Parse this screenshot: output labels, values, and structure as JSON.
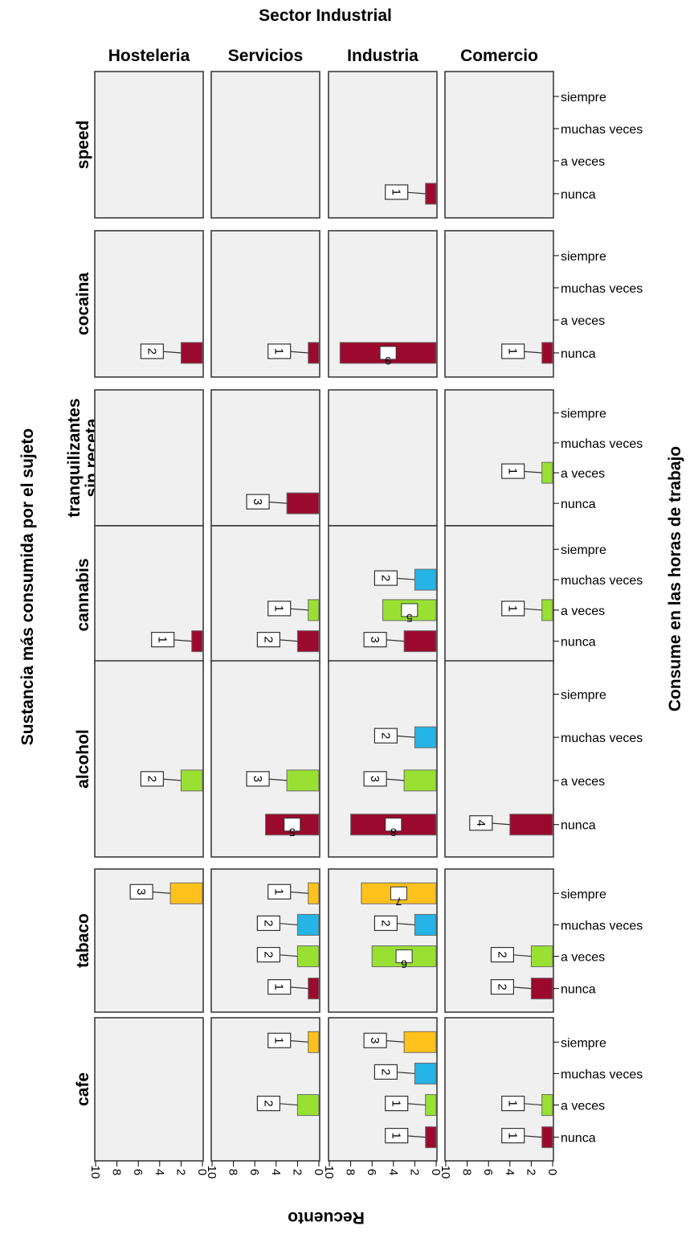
{
  "chart_data": {
    "type": "bar",
    "title": "Sector Industrial",
    "column_labels": [
      "Hosteleria",
      "Servicios",
      "Industria",
      "Comercio"
    ],
    "row_labels": [
      "speed",
      "cocaina",
      "tranquilizantes sin receta",
      "cannabis",
      "alcohol",
      "tabaco",
      "cafe"
    ],
    "row_label_lines": [
      [
        "speed"
      ],
      [
        "cocaina"
      ],
      [
        "tranquilizantes",
        "sin receta"
      ],
      [
        "cannabis"
      ],
      [
        "alcohol"
      ],
      [
        "tabaco"
      ],
      [
        "cafe"
      ]
    ],
    "categories": [
      "nunca",
      "a veces",
      "muchas veces",
      "siempre"
    ],
    "series_colors": {
      "nunca": "#9b0a2e",
      "a veces": "#99e032",
      "muchas veces": "#26b4e6",
      "siempre": "#ffc11c"
    },
    "xlabel": "Recuento",
    "xlim": [
      0,
      10
    ],
    "xticks": [
      0,
      2,
      4,
      6,
      8,
      10
    ],
    "ylabel_left": "Sustancia más consumida por el sujeto",
    "ylabel_right": "Consume en las horas de trabajo",
    "bars": [
      {
        "row": "speed",
        "column": "Industria",
        "category": "nunca",
        "value": 1
      },
      {
        "row": "cocaina",
        "column": "Hosteleria",
        "category": "nunca",
        "value": 2
      },
      {
        "row": "cocaina",
        "column": "Servicios",
        "category": "nunca",
        "value": 1
      },
      {
        "row": "cocaina",
        "column": "Industria",
        "category": "nunca",
        "value": 9
      },
      {
        "row": "cocaina",
        "column": "Comercio",
        "category": "nunca",
        "value": 1
      },
      {
        "row": "tranquilizantes sin receta",
        "column": "Servicios",
        "category": "nunca",
        "value": 3
      },
      {
        "row": "tranquilizantes sin receta",
        "column": "Comercio",
        "category": "a veces",
        "value": 1
      },
      {
        "row": "cannabis",
        "column": "Hosteleria",
        "category": "nunca",
        "value": 1
      },
      {
        "row": "cannabis",
        "column": "Servicios",
        "category": "nunca",
        "value": 2
      },
      {
        "row": "cannabis",
        "column": "Servicios",
        "category": "a veces",
        "value": 1
      },
      {
        "row": "cannabis",
        "column": "Industria",
        "category": "nunca",
        "value": 3
      },
      {
        "row": "cannabis",
        "column": "Industria",
        "category": "a veces",
        "value": 5
      },
      {
        "row": "cannabis",
        "column": "Industria",
        "category": "muchas veces",
        "value": 2
      },
      {
        "row": "cannabis",
        "column": "Comercio",
        "category": "a veces",
        "value": 1
      },
      {
        "row": "alcohol",
        "column": "Hosteleria",
        "category": "a veces",
        "value": 2
      },
      {
        "row": "alcohol",
        "column": "Servicios",
        "category": "nunca",
        "value": 5
      },
      {
        "row": "alcohol",
        "column": "Servicios",
        "category": "a veces",
        "value": 3
      },
      {
        "row": "alcohol",
        "column": "Industria",
        "category": "nunca",
        "value": 8
      },
      {
        "row": "alcohol",
        "column": "Industria",
        "category": "a veces",
        "value": 3
      },
      {
        "row": "alcohol",
        "column": "Industria",
        "category": "muchas veces",
        "value": 2
      },
      {
        "row": "alcohol",
        "column": "Comercio",
        "category": "nunca",
        "value": 4
      },
      {
        "row": "tabaco",
        "column": "Hosteleria",
        "category": "siempre",
        "value": 3
      },
      {
        "row": "tabaco",
        "column": "Servicios",
        "category": "nunca",
        "value": 1
      },
      {
        "row": "tabaco",
        "column": "Servicios",
        "category": "a veces",
        "value": 2
      },
      {
        "row": "tabaco",
        "column": "Servicios",
        "category": "muchas veces",
        "value": 2
      },
      {
        "row": "tabaco",
        "column": "Servicios",
        "category": "siempre",
        "value": 1
      },
      {
        "row": "tabaco",
        "column": "Industria",
        "category": "a veces",
        "value": 6
      },
      {
        "row": "tabaco",
        "column": "Industria",
        "category": "muchas veces",
        "value": 2
      },
      {
        "row": "tabaco",
        "column": "Industria",
        "category": "siempre",
        "value": 7
      },
      {
        "row": "tabaco",
        "column": "Comercio",
        "category": "nunca",
        "value": 2
      },
      {
        "row": "tabaco",
        "column": "Comercio",
        "category": "a veces",
        "value": 2
      },
      {
        "row": "cafe",
        "column": "Servicios",
        "category": "a veces",
        "value": 2
      },
      {
        "row": "cafe",
        "column": "Servicios",
        "category": "siempre",
        "value": 1
      },
      {
        "row": "cafe",
        "column": "Industria",
        "category": "nunca",
        "value": 1
      },
      {
        "row": "cafe",
        "column": "Industria",
        "category": "a veces",
        "value": 1
      },
      {
        "row": "cafe",
        "column": "Industria",
        "category": "muchas veces",
        "value": 2
      },
      {
        "row": "cafe",
        "column": "Industria",
        "category": "siempre",
        "value": 3
      },
      {
        "row": "cafe",
        "column": "Comercio",
        "category": "nunca",
        "value": 1
      },
      {
        "row": "cafe",
        "column": "Comercio",
        "category": "a veces",
        "value": 1
      }
    ],
    "legend": "none",
    "grid": false
  }
}
